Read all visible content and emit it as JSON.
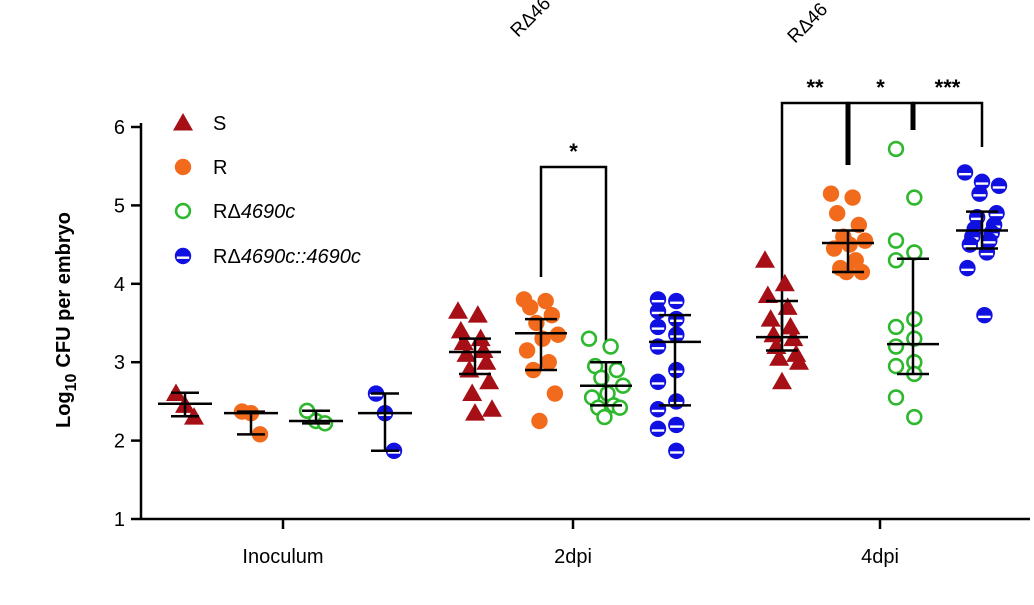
{
  "chart_data": {
    "type": "scatter",
    "title": "",
    "ylabel_main": "Log",
    "ylabel_sub": "10",
    "ylabel_rest": "CFU per embryo",
    "xlabel": "",
    "ylim": [
      1,
      6
    ],
    "yticks": [
      "1",
      "2",
      "3",
      "4",
      "5",
      "6"
    ],
    "categories": [
      "Inoculum",
      "2dpi",
      "4dpi"
    ],
    "top_labels": [
      "RΔ46",
      "RΔ46"
    ],
    "legend": [
      {
        "label_prefix": "R",
        "label_italic": "",
        "color": "#a50f15",
        "marker": "triangle"
      },
      {
        "label_prefix": "R",
        "label_italic": "",
        "color": "#f26a1b",
        "marker": "filled-circle"
      },
      {
        "label_prefix": "RΔ",
        "label_italic": "4690c",
        "color": "#2db82d",
        "marker": "open-circle"
      },
      {
        "label_prefix": "RΔ",
        "label_italic": "4690c::4690c",
        "color": "#1010e0",
        "marker": "half-circle"
      }
    ],
    "legend_labels": {
      "s": "S",
      "r": "R",
      "del_prefix": "RΔ",
      "del_italic": "4690c",
      "comp_prefix": "RΔ",
      "comp_italic": "4690c::4690c"
    },
    "series": [
      {
        "name": "S",
        "marker": "triangle",
        "color": "#a50f15",
        "groups": [
          {
            "category": "Inoculum",
            "values": [
              2.6,
              2.45,
              2.3
            ],
            "center": 2.47,
            "err": [
              2.31,
              2.61
            ]
          },
          {
            "category": "2dpi",
            "values": [
              3.65,
              3.6,
              3.4,
              3.3,
              3.25,
              3.15,
              3.1,
              3.0,
              2.9,
              2.75,
              2.6,
              2.4,
              2.35
            ],
            "center": 3.13,
            "err": [
              2.85,
              3.3
            ]
          },
          {
            "category": "4dpi",
            "values": [
              4.3,
              4.0,
              3.85,
              3.7,
              3.55,
              3.45,
              3.35,
              3.3,
              3.2,
              3.1,
              3.05,
              3.0,
              2.75
            ],
            "center": 3.32,
            "err": [
              3.15,
              3.78
            ]
          }
        ]
      },
      {
        "name": "R",
        "marker": "filled-circle",
        "color": "#f26a1b",
        "groups": [
          {
            "category": "Inoculum",
            "values": [
              2.37,
              2.35,
              2.08
            ],
            "center": 2.35,
            "err": [
              2.08,
              2.37
            ]
          },
          {
            "category": "2dpi",
            "values": [
              3.8,
              3.78,
              3.7,
              3.6,
              3.5,
              3.35,
              3.3,
              3.15,
              3.0,
              2.9,
              2.6,
              2.25
            ],
            "center": 3.37,
            "err": [
              2.9,
              3.55
            ]
          },
          {
            "category": "4dpi",
            "values": [
              5.15,
              5.1,
              4.9,
              4.75,
              4.6,
              4.55,
              4.5,
              4.45,
              4.3,
              4.2,
              4.15,
              4.15
            ],
            "center": 4.52,
            "err": [
              4.15,
              4.68
            ]
          }
        ]
      },
      {
        "name": "RΔ4690c",
        "marker": "open-circle",
        "color": "#2db82d",
        "groups": [
          {
            "category": "Inoculum",
            "values": [
              2.38,
              2.25,
              2.22
            ],
            "center": 2.25,
            "err": [
              2.22,
              2.38
            ]
          },
          {
            "category": "2dpi",
            "values": [
              3.3,
              3.2,
              2.95,
              2.9,
              2.8,
              2.7,
              2.6,
              2.55,
              2.45,
              2.42,
              2.42,
              2.3
            ],
            "center": 2.7,
            "err": [
              2.45,
              3.0
            ]
          },
          {
            "category": "4dpi",
            "values": [
              5.72,
              5.1,
              4.55,
              4.4,
              4.3,
              3.55,
              3.45,
              3.3,
              3.2,
              3.0,
              2.95,
              2.85,
              2.55,
              2.3
            ],
            "center": 3.23,
            "err": [
              2.85,
              4.32
            ]
          }
        ]
      },
      {
        "name": "RΔ4690c::4690c",
        "marker": "half-circle",
        "color": "#1010e0",
        "groups": [
          {
            "category": "Inoculum",
            "values": [
              2.6,
              2.35,
              1.87
            ],
            "center": 2.35,
            "err": [
              1.87,
              2.6
            ]
          },
          {
            "category": "2dpi",
            "values": [
              3.8,
              3.78,
              3.65,
              3.55,
              3.45,
              3.35,
              3.2,
              2.9,
              2.75,
              2.5,
              2.4,
              2.2,
              2.15,
              1.87
            ],
            "center": 3.26,
            "err": [
              2.45,
              3.6
            ]
          },
          {
            "category": "4dpi",
            "values": [
              5.42,
              5.3,
              5.25,
              5.15,
              4.9,
              4.85,
              4.75,
              4.7,
              4.65,
              4.6,
              4.55,
              4.5,
              4.4,
              4.2,
              3.6
            ],
            "center": 4.68,
            "err": [
              4.45,
              4.92
            ]
          }
        ]
      }
    ],
    "significance": [
      {
        "label": "*",
        "category": "2dpi",
        "from_series": 1,
        "to_series": 2
      },
      {
        "label": "**",
        "category": "4dpi",
        "from_series": 0,
        "to_series": 1
      },
      {
        "label": "*",
        "category": "4dpi",
        "from_series": 1,
        "to_series": 2
      },
      {
        "label": "***",
        "category": "4dpi",
        "from_series": 2,
        "to_series": 3
      }
    ]
  }
}
